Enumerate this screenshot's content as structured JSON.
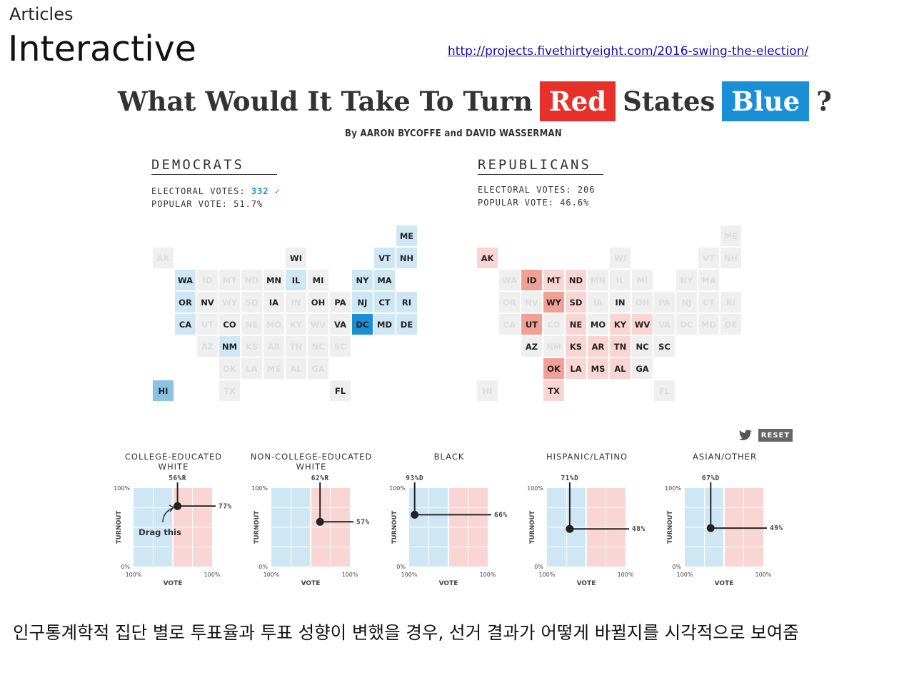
{
  "slide": {
    "kicker": "Articles",
    "title": "Interactive",
    "link": "http://projects.fivethirtyeight.com/2016-swing-the-election/",
    "caption": "인구통계학적 집단 별로 투표율과 투표 성향이 변했을 경우, 선거 결과가 어떻게 바뀔지를 시각적으로 보여줌"
  },
  "article": {
    "headline_start": "What Would It Take To Turn",
    "red_word": "Red",
    "headline_mid": "States",
    "blue_word": "Blue",
    "headline_end": "?",
    "byline": "By AARON BYCOFFE and DAVID WASSERMAN",
    "reset_label": "RESET",
    "drag_hint": "Drag this"
  },
  "democrats": {
    "heading": "DEMOCRATS",
    "ev_label": "ELECTORAL VOTES:",
    "ev_value": "332",
    "ev_check": "✓",
    "pv_label": "POPULAR VOTE:",
    "pv_value": "51.7%"
  },
  "republicans": {
    "heading": "REPUBLICANS",
    "ev_label": "ELECTORAL VOTES:",
    "ev_value": "206",
    "pv_label": "POPULAR VOTE:",
    "pv_value": "46.6%"
  },
  "colors": {
    "dem_dark": "#1a8fd6",
    "dem_light": "#cfe7f4",
    "rep_dark": "#e7302a",
    "rep_light": "#f9d6d3",
    "neutral": "#efefef",
    "dem_mid": "#8cc3e3",
    "rep_mid": "#f0a196"
  },
  "map": {
    "states": [
      {
        "abbr": "ME",
        "col": 11,
        "row": 0
      },
      {
        "abbr": "AK",
        "col": 0,
        "row": 1
      },
      {
        "abbr": "WI",
        "col": 6,
        "row": 1
      },
      {
        "abbr": "VT",
        "col": 10,
        "row": 1
      },
      {
        "abbr": "NH",
        "col": 11,
        "row": 1
      },
      {
        "abbr": "WA",
        "col": 1,
        "row": 2
      },
      {
        "abbr": "ID",
        "col": 2,
        "row": 2
      },
      {
        "abbr": "MT",
        "col": 3,
        "row": 2
      },
      {
        "abbr": "ND",
        "col": 4,
        "row": 2
      },
      {
        "abbr": "MN",
        "col": 5,
        "row": 2
      },
      {
        "abbr": "IL",
        "col": 6,
        "row": 2
      },
      {
        "abbr": "MI",
        "col": 7,
        "row": 2
      },
      {
        "abbr": "NY",
        "col": 9,
        "row": 2
      },
      {
        "abbr": "MA",
        "col": 10,
        "row": 2
      },
      {
        "abbr": "OR",
        "col": 1,
        "row": 3
      },
      {
        "abbr": "NV",
        "col": 2,
        "row": 3
      },
      {
        "abbr": "WY",
        "col": 3,
        "row": 3
      },
      {
        "abbr": "SD",
        "col": 4,
        "row": 3
      },
      {
        "abbr": "IA",
        "col": 5,
        "row": 3
      },
      {
        "abbr": "IN",
        "col": 6,
        "row": 3
      },
      {
        "abbr": "OH",
        "col": 7,
        "row": 3
      },
      {
        "abbr": "PA",
        "col": 8,
        "row": 3
      },
      {
        "abbr": "NJ",
        "col": 9,
        "row": 3
      },
      {
        "abbr": "CT",
        "col": 10,
        "row": 3
      },
      {
        "abbr": "RI",
        "col": 11,
        "row": 3
      },
      {
        "abbr": "CA",
        "col": 1,
        "row": 4
      },
      {
        "abbr": "UT",
        "col": 2,
        "row": 4
      },
      {
        "abbr": "CO",
        "col": 3,
        "row": 4
      },
      {
        "abbr": "NE",
        "col": 4,
        "row": 4
      },
      {
        "abbr": "MO",
        "col": 5,
        "row": 4
      },
      {
        "abbr": "KY",
        "col": 6,
        "row": 4
      },
      {
        "abbr": "WV",
        "col": 7,
        "row": 4
      },
      {
        "abbr": "VA",
        "col": 8,
        "row": 4
      },
      {
        "abbr": "DC",
        "col": 9,
        "row": 4
      },
      {
        "abbr": "MD",
        "col": 10,
        "row": 4
      },
      {
        "abbr": "DE",
        "col": 11,
        "row": 4
      },
      {
        "abbr": "AZ",
        "col": 2,
        "row": 5
      },
      {
        "abbr": "NM",
        "col": 3,
        "row": 5
      },
      {
        "abbr": "KS",
        "col": 4,
        "row": 5
      },
      {
        "abbr": "AR",
        "col": 5,
        "row": 5
      },
      {
        "abbr": "TN",
        "col": 6,
        "row": 5
      },
      {
        "abbr": "NC",
        "col": 7,
        "row": 5
      },
      {
        "abbr": "SC",
        "col": 8,
        "row": 5
      },
      {
        "abbr": "OK",
        "col": 3,
        "row": 6
      },
      {
        "abbr": "LA",
        "col": 4,
        "row": 6
      },
      {
        "abbr": "MS",
        "col": 5,
        "row": 6
      },
      {
        "abbr": "AL",
        "col": 6,
        "row": 6
      },
      {
        "abbr": "GA",
        "col": 7,
        "row": 6
      },
      {
        "abbr": "HI",
        "col": 0,
        "row": 7
      },
      {
        "abbr": "TX",
        "col": 3,
        "row": 7
      },
      {
        "abbr": "FL",
        "col": 8,
        "row": 7
      }
    ],
    "dem_shading": {
      "ME": "light",
      "WI": "neutral-bold",
      "VT": "light",
      "NH": "light",
      "WA": "light",
      "MN": "neutral-bold",
      "IL": "light",
      "MI": "neutral-bold",
      "NY": "light",
      "MA": "light",
      "OR": "light",
      "NV": "neutral-bold",
      "IA": "neutral-bold",
      "OH": "neutral-bold",
      "PA": "neutral-bold",
      "NJ": "light",
      "CT": "light",
      "RI": "light",
      "CA": "light",
      "CO": "neutral-bold",
      "VA": "neutral-bold",
      "DC": "dark",
      "MD": "light",
      "DE": "light",
      "NM": "light",
      "HI": "mid",
      "FL": "neutral-bold"
    },
    "rep_shading": {
      "AK": "light",
      "ID": "mid",
      "MT": "light",
      "ND": "light",
      "IN": "neutral-bold",
      "WY": "mid",
      "SD": "light",
      "UT": "mid",
      "NE": "light",
      "MO": "neutral-bold",
      "KY": "light",
      "WV": "light",
      "AZ": "neutral-bold",
      "KS": "light",
      "AR": "light",
      "TN": "light",
      "NC": "neutral-bold",
      "SC": "neutral-bold",
      "OK": "mid",
      "LA": "light",
      "MS": "light",
      "AL": "light",
      "GA": "neutral-bold",
      "TX": "light"
    }
  },
  "groups": [
    {
      "id": "college-white",
      "title": "COLLEGE-EDUCATED\nWHITE",
      "vote_label": "56%R",
      "turnout_label": "77%",
      "vote_share_dem": 44,
      "turnout": 77
    },
    {
      "id": "non-college-white",
      "title": "NON-COLLEGE-EDUCATED\nWHITE",
      "vote_label": "62%R",
      "turnout_label": "57%",
      "vote_share_dem": 38,
      "turnout": 57
    },
    {
      "id": "black",
      "title": "BLACK",
      "vote_label": "93%D",
      "turnout_label": "66%",
      "vote_share_dem": 93,
      "turnout": 66
    },
    {
      "id": "hispanic",
      "title": "HISPANIC/LATINO",
      "vote_label": "71%D",
      "turnout_label": "48%",
      "vote_share_dem": 71,
      "turnout": 48
    },
    {
      "id": "asian-other",
      "title": "ASIAN/OTHER",
      "vote_label": "67%D",
      "turnout_label": "49%",
      "vote_share_dem": 67,
      "turnout": 49
    }
  ],
  "axis": {
    "y_top": "100%",
    "y_bottom": "0%",
    "x_left": "100%",
    "x_right": "100%",
    "y_title": "TURNOUT",
    "x_title": "VOTE"
  }
}
